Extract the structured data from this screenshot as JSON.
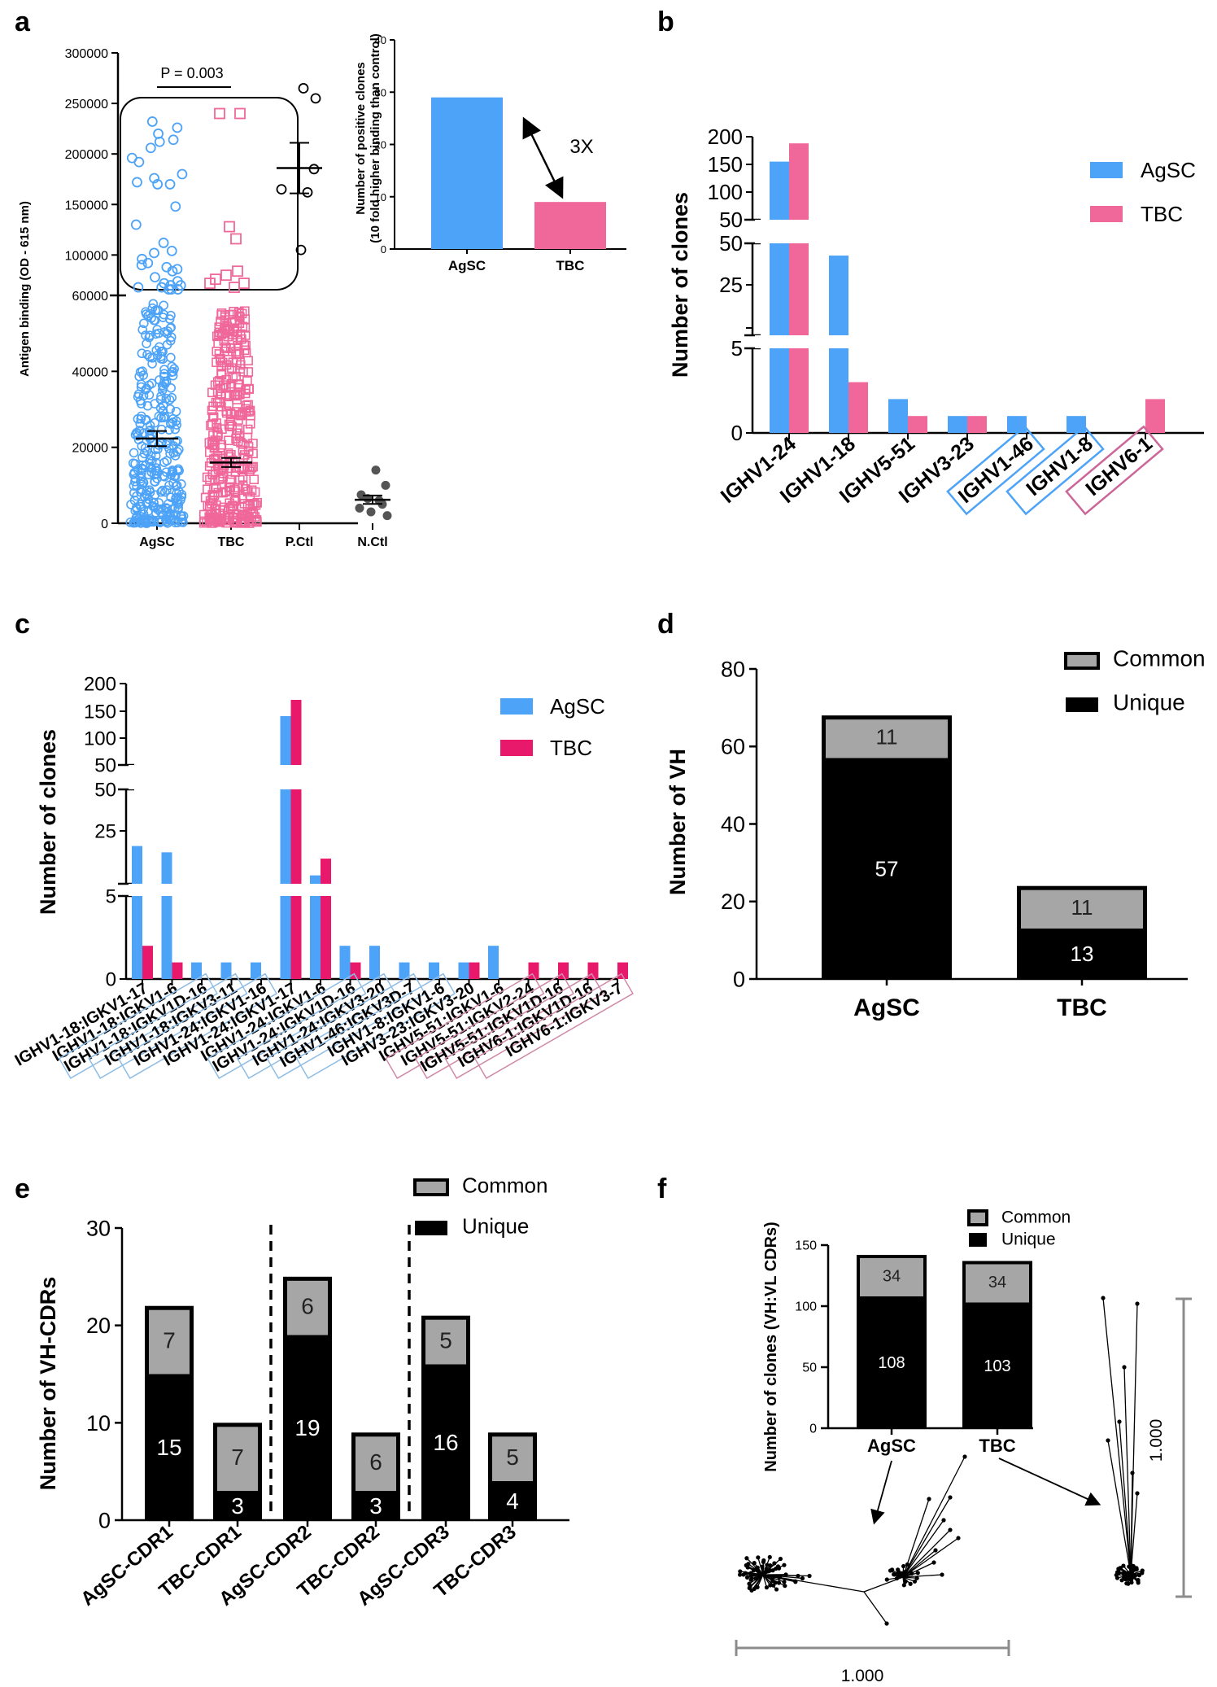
{
  "colors": {
    "agsc": "#4da3f7",
    "tbc_a": "#f0679a",
    "tbc": "#ef5a8f",
    "tbc_c": "#e8196b",
    "common": "#a6a6a6",
    "unique": "#000000",
    "axis": "#000000",
    "scalebar": "#8c8c8c"
  },
  "panels": {
    "a": "a",
    "b": "b",
    "c": "c",
    "d": "d",
    "e": "e",
    "f": "f"
  },
  "chart_data": [
    {
      "id": "a",
      "type": "scatter",
      "ylabel": "Antigen binding (OD - 615 nm)",
      "categories": [
        "AgSC",
        "TBC",
        "P.Ctl",
        "N.Ctl"
      ],
      "y_ticks_lower": [
        "0",
        "20000",
        "40000",
        "60000"
      ],
      "y_ticks_upper": [
        "100000",
        "150000",
        "200000",
        "250000",
        "300000"
      ],
      "ylim_lower": [
        0,
        60000
      ],
      "ylim_upper": [
        60000,
        300000
      ],
      "pvalue": "P = 0.003",
      "p_ctl_values": [
        265000,
        255000,
        185000,
        165000,
        162000,
        105000
      ],
      "p_ctl_mean": 186000,
      "p_ctl_sem": 25000,
      "n_ctl_values": [
        14000,
        10000,
        7500,
        6500,
        6000,
        5000,
        4000,
        3000,
        2000
      ],
      "n_ctl_mean": 6200,
      "n_ctl_sem": 1100,
      "agsc_mean": 22300,
      "agsc_sem": 2000,
      "tbc_mean": 16000,
      "tbc_sem": 1200,
      "agsc_high": [
        232000,
        226000,
        220000,
        214000,
        212000,
        206000,
        196000,
        192000,
        180000,
        176000,
        172000,
        170000,
        170000,
        148000,
        130000,
        112000,
        104000,
        102000,
        96000,
        92000,
        90000,
        88000,
        86000,
        84000,
        78000,
        74000,
        72000,
        70000,
        70000,
        68000,
        68000,
        66000,
        66000,
        66000
      ],
      "tbc_high": [
        240000,
        240000,
        128000,
        116000,
        84000,
        80000,
        76000,
        72000,
        72000,
        68000
      ],
      "inset": {
        "type": "bar",
        "categories": [
          "AgSC",
          "TBC"
        ],
        "values": [
          29,
          9
        ],
        "ylabel_line1": "Number of positive clones",
        "ylabel_line2": "(10 fold higher binding than control)",
        "y_ticks": [
          "0",
          "10",
          "20",
          "30",
          "40"
        ],
        "ylim": [
          0,
          40
        ],
        "annotation": "3X"
      }
    },
    {
      "id": "b",
      "type": "bar",
      "ylabel": "Number of clones",
      "categories": [
        "IGHV1-24",
        "IGHV1-18",
        "IGHV5-51",
        "IGHV3-23",
        "IGHV1-46",
        "IGHV1-8",
        "IGHV6-1"
      ],
      "boxed": [
        "none",
        "none",
        "none",
        "none",
        "agsc",
        "agsc",
        "tbc"
      ],
      "series": [
        {
          "name": "AgSC",
          "values": [
            155,
            44,
            2,
            1,
            1,
            1,
            0
          ]
        },
        {
          "name": "TBC",
          "values": [
            188,
            3,
            1,
            1,
            0,
            0,
            2
          ]
        }
      ],
      "y_ticks_top": [
        "50",
        "100",
        "150",
        "200"
      ],
      "y_ticks_mid": [
        "25",
        "50"
      ],
      "y_ticks_low": [
        "0",
        "5"
      ],
      "ylim_broken": [
        [
          0,
          5
        ],
        [
          5,
          50
        ],
        [
          50,
          200
        ]
      ]
    },
    {
      "id": "c",
      "type": "bar",
      "ylabel": "Number of clones",
      "categories": [
        "IGHV1-18:IGKV1-17",
        "IGHV1-18:IGKV1-6",
        "IGHV1-18:IGKV1D-16",
        "IGHV1-18:IGKV3-11",
        "IGHV1-24:IGKV1-16",
        "IGHV1-24:IGKV1-17",
        "IGHV1-24:IGKV1-6",
        "IGHV1-24:IGKV1D-16",
        "IGHV1-24:IGKV3-20",
        "IGHV1-46:IGKV3D-7",
        "IGHV1-8:IGKV1-6",
        "IGHV3-23:IGKV3-20",
        "IGHV5-51:IGKV1-6",
        "IGHV5-51:IGKV2-24",
        "IGHV5-51:IGKV1D-16",
        "IGHV6-1:IGKV1D-16",
        "IGHV6-1:IGKV3-7"
      ],
      "boxed": [
        "none",
        "none",
        "agsc",
        "agsc",
        "agsc",
        "none",
        "none",
        "agsc",
        "agsc",
        "agsc",
        "agsc",
        "none",
        "none",
        "tbc",
        "tbc",
        "tbc",
        "tbc"
      ],
      "series": [
        {
          "name": "AgSC",
          "values": [
            23,
            20,
            1,
            1,
            1,
            140,
            9,
            2,
            2,
            1,
            1,
            1,
            2,
            0,
            0,
            0,
            0
          ]
        },
        {
          "name": "TBC",
          "values": [
            2,
            1,
            0,
            0,
            0,
            170,
            17,
            1,
            0,
            0,
            0,
            1,
            0,
            1,
            1,
            1,
            1
          ]
        }
      ],
      "y_ticks_top": [
        "50",
        "100",
        "150",
        "200"
      ],
      "y_ticks_mid": [
        "25",
        "50"
      ],
      "y_ticks_low": [
        "0",
        "5"
      ]
    },
    {
      "id": "d",
      "type": "bar",
      "ylabel": "Number of VH",
      "categories": [
        "AgSC",
        "TBC"
      ],
      "series": [
        {
          "name": "Unique",
          "values": [
            57,
            13
          ]
        },
        {
          "name": "Common",
          "values": [
            11,
            11
          ]
        }
      ],
      "y_ticks": [
        "0",
        "20",
        "40",
        "60",
        "80"
      ],
      "ylim": [
        0,
        80
      ],
      "legend_position": "top-right"
    },
    {
      "id": "e",
      "type": "bar",
      "ylabel": "Number of VH-CDRs",
      "categories": [
        "AgSC-CDR1",
        "TBC-CDR1",
        "AgSC-CDR2",
        "TBC-CDR2",
        "AgSC-CDR3",
        "TBC-CDR3"
      ],
      "series": [
        {
          "name": "Unique",
          "values": [
            15,
            3,
            19,
            3,
            16,
            4
          ]
        },
        {
          "name": "Common",
          "values": [
            7,
            7,
            6,
            6,
            5,
            5
          ]
        }
      ],
      "y_ticks": [
        "0",
        "10",
        "20",
        "30"
      ],
      "ylim": [
        0,
        30
      ],
      "legend_position": "top-right"
    },
    {
      "id": "f",
      "type": "bar",
      "ylabel": "Number of clones (VH:VL CDRs)",
      "categories": [
        "AgSC",
        "TBC"
      ],
      "series": [
        {
          "name": "Unique",
          "values": [
            108,
            103
          ]
        },
        {
          "name": "Common",
          "values": [
            34,
            34
          ]
        }
      ],
      "y_ticks": [
        "0",
        "50",
        "100",
        "150"
      ],
      "ylim": [
        0,
        150
      ],
      "scale_bar_label_h": "1.000",
      "scale_bar_label_v": "1.000"
    }
  ]
}
